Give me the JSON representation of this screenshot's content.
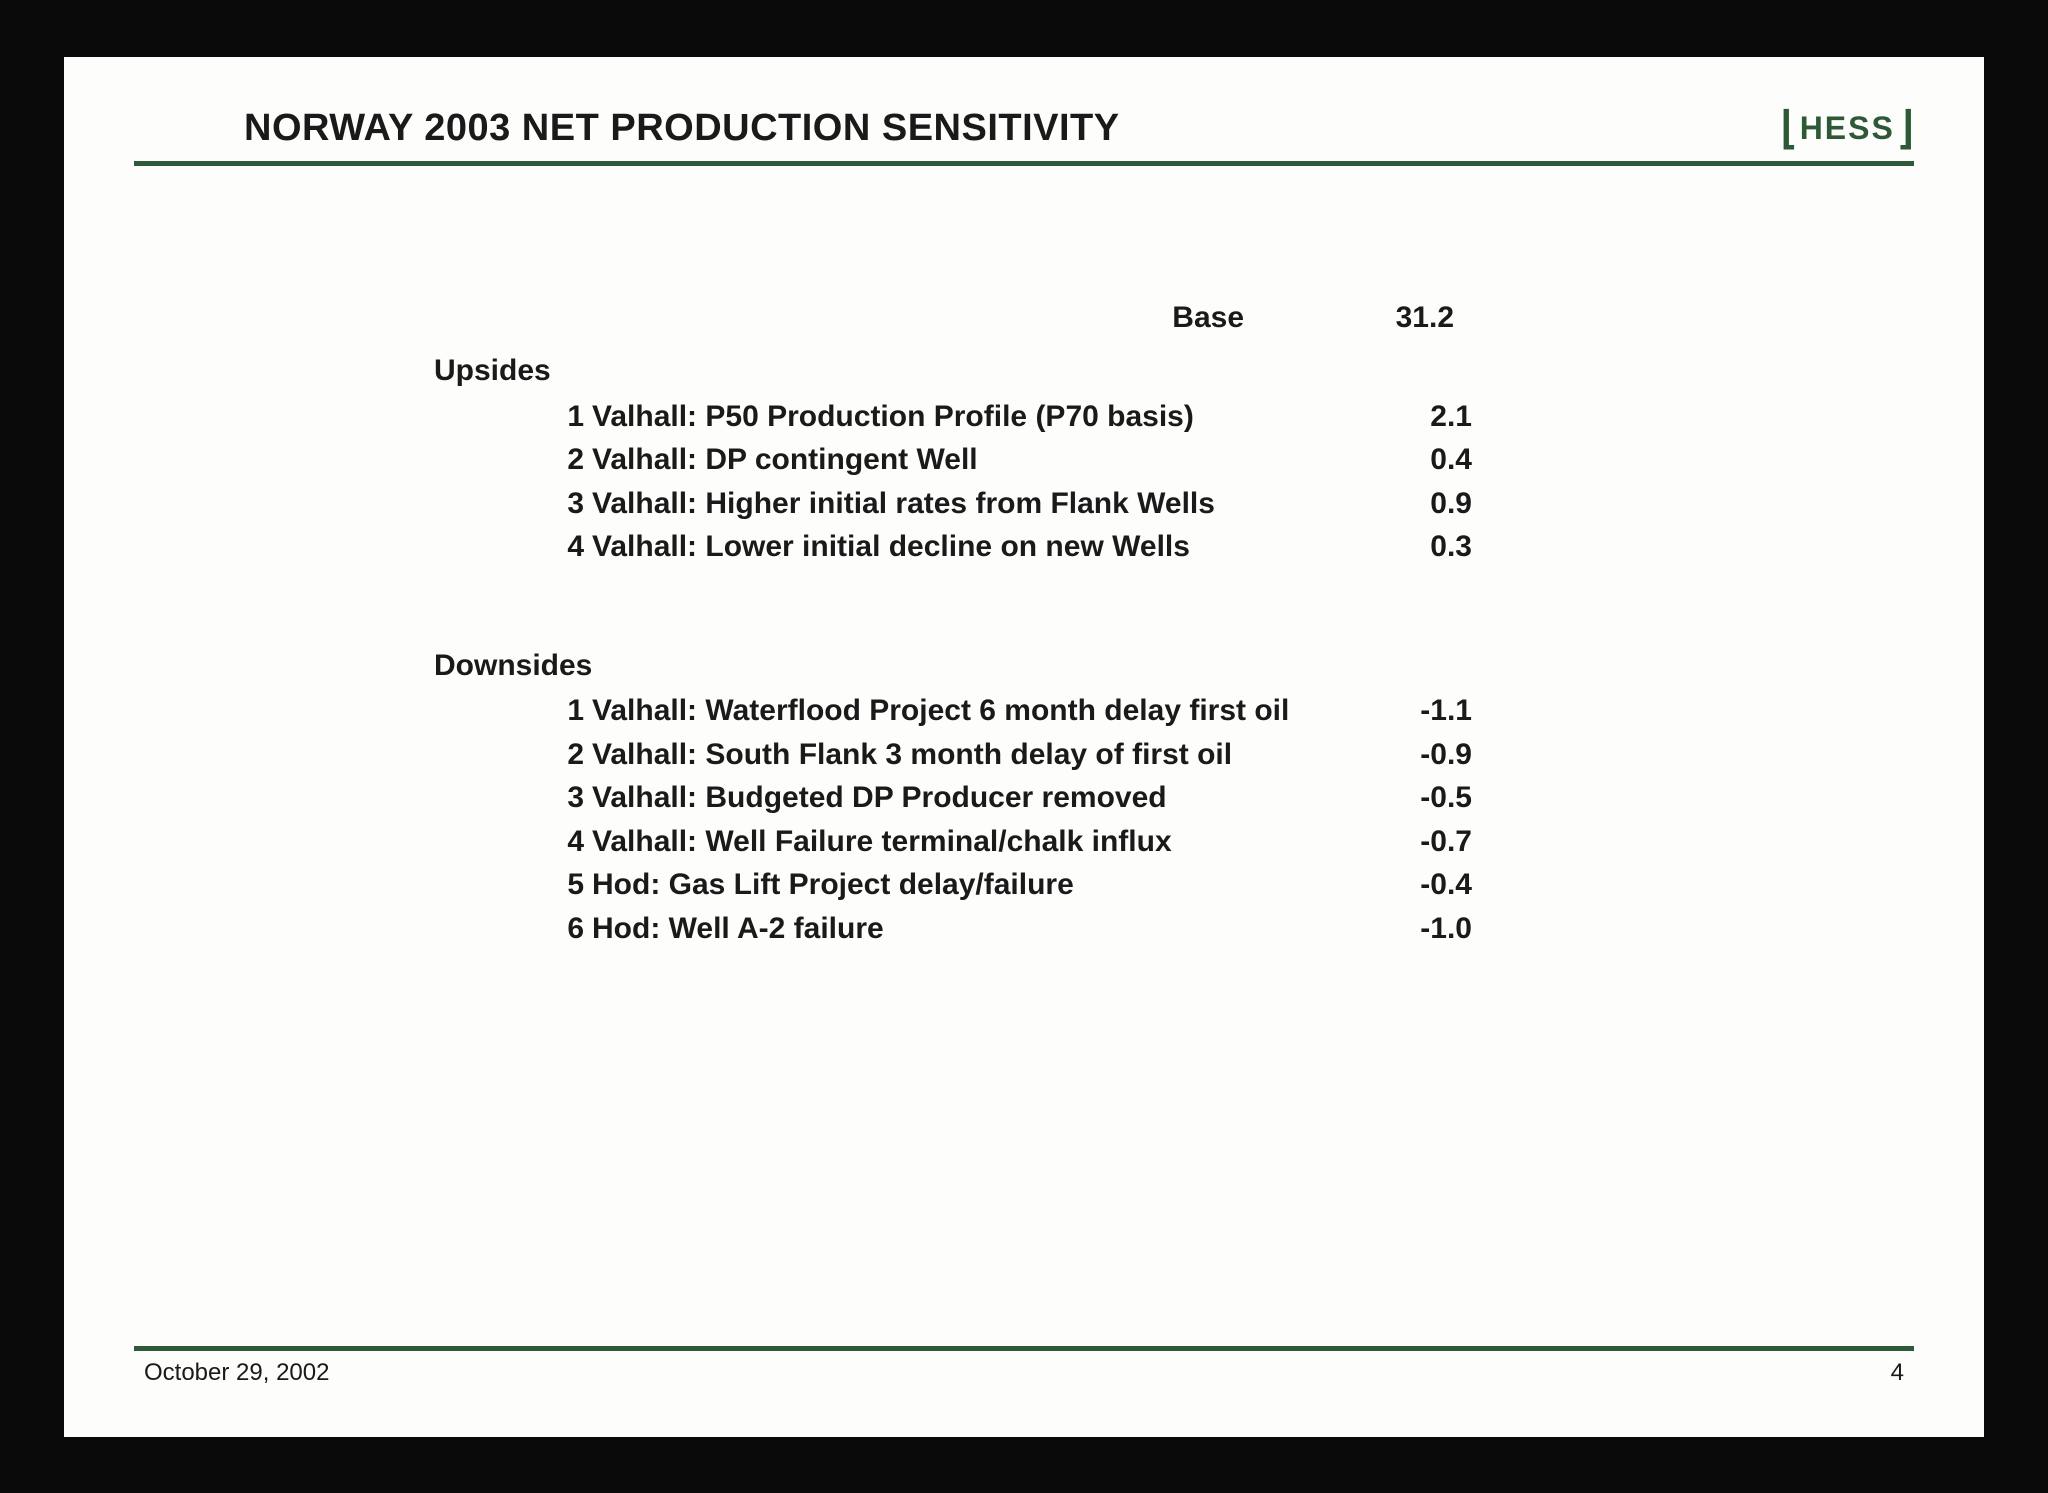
{
  "title": "NORWAY 2003 NET PRODUCTION SENSITIVITY",
  "logo": "HESS",
  "base": {
    "label": "Base",
    "value": "31.2"
  },
  "upsides": {
    "label": "Upsides",
    "items": [
      {
        "num": "1",
        "desc": "Valhall: P50 Production Profile (P70 basis)",
        "val": "2.1"
      },
      {
        "num": "2",
        "desc": "Valhall: DP contingent Well",
        "val": "0.4"
      },
      {
        "num": "3",
        "desc": "Valhall: Higher initial rates from Flank Wells",
        "val": "0.9"
      },
      {
        "num": "4",
        "desc": "Valhall: Lower initial decline on new Wells",
        "val": "0.3"
      }
    ]
  },
  "downsides": {
    "label": "Downsides",
    "items": [
      {
        "num": "1",
        "desc": "Valhall: Waterflood Project 6 month delay first oil",
        "val": "-1.1"
      },
      {
        "num": "2",
        "desc": "Valhall: South Flank 3 month delay of first oil",
        "val": "-0.9"
      },
      {
        "num": "3",
        "desc": "Valhall: Budgeted DP Producer removed",
        "val": "-0.5"
      },
      {
        "num": "4",
        "desc": "Valhall: Well Failure terminal/chalk influx",
        "val": "-0.7"
      },
      {
        "num": "5",
        "desc": "Hod: Gas Lift Project delay/failure",
        "val": "-0.4"
      },
      {
        "num": "6",
        "desc": "Hod: Well A-2 failure",
        "val": "-1.0"
      }
    ]
  },
  "footer": {
    "date": "October 29, 2002",
    "page": "4"
  },
  "colors": {
    "accent": "#2d5936",
    "background": "#fdfdfb",
    "text": "#1a1a1a"
  }
}
